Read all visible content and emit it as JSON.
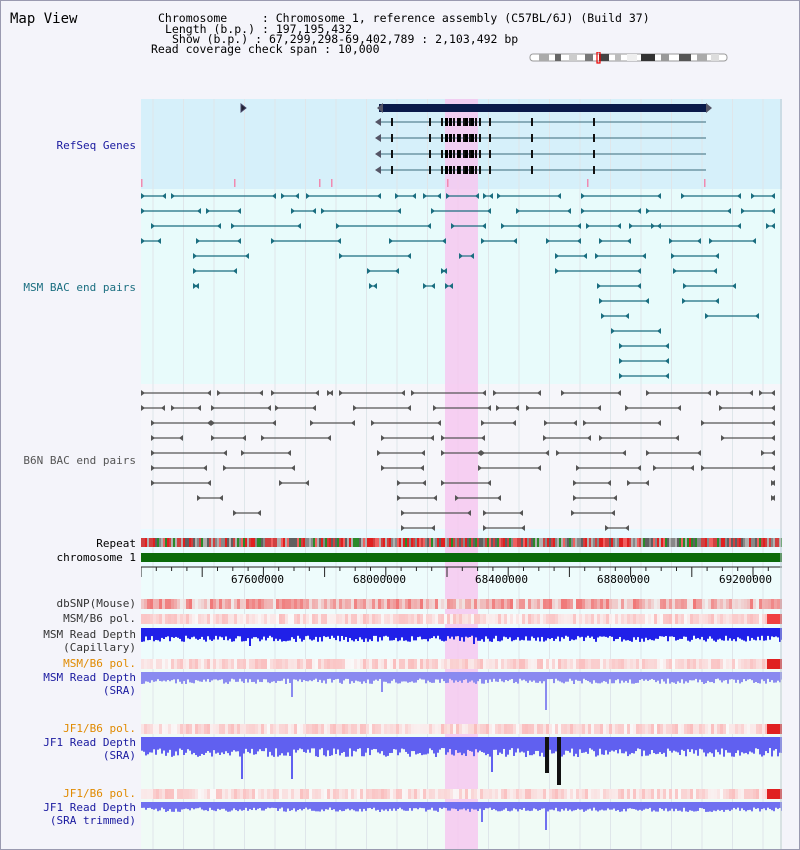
{
  "title": "Map View",
  "info": {
    "chromosome_label": "Chromosome",
    "chromosome_value": "Chromosome 1, reference assembly (C57BL/6J) (Build 37)",
    "length_label": "Length (b.p.)",
    "length_value": "197,195,432",
    "show_label": "Show (b.p.)",
    "show_value": "67,299,298-69,402,789 : 2,103,492 bp",
    "coverage_label": "Read coverage check span",
    "coverage_value": "10,000",
    "sep": ":"
  },
  "tracks": {
    "refseq": "RefSeq Genes",
    "msm_bac": "MSM BAC end pairs",
    "b6n_bac": "B6N BAC end pairs",
    "repeat": "Repeat",
    "chromosome": "chromosome 1",
    "dbsnp": "dbSNP(Mouse)",
    "msm_b6_pol_1": "MSM/B6 pol.",
    "msm_read_depth_cap": "MSM Read Depth",
    "msm_read_depth_cap_sub": "(Capillary)",
    "msm_b6_pol_2": "MSM/B6 pol.",
    "msm_read_depth_sra": "MSM Read Depth",
    "msm_read_depth_sra_sub": "(SRA)",
    "jf1_b6_pol_1": "JF1/B6 pol.",
    "jf1_read_depth_sra": "JF1 Read Depth",
    "jf1_read_depth_sra_sub": "(SRA)",
    "jf1_b6_pol_2": "JF1/B6 pol.",
    "jf1_read_depth_trim": "JF1 Read Depth",
    "jf1_read_depth_trim_sub": "(SRA trimmed)"
  },
  "axis": {
    "ticks": [
      "67600000",
      "68000000",
      "68400000",
      "68800000",
      "69200000"
    ]
  },
  "colors": {
    "refseq_label": "#1a1aa0",
    "msm_label": "#1a6e80",
    "b6n_label": "#555555",
    "orange_label": "#e08a00",
    "blue_label": "#1a1aa0",
    "chrom_bar": "#0a6a0a",
    "highlight": "#f6c8f0"
  }
}
